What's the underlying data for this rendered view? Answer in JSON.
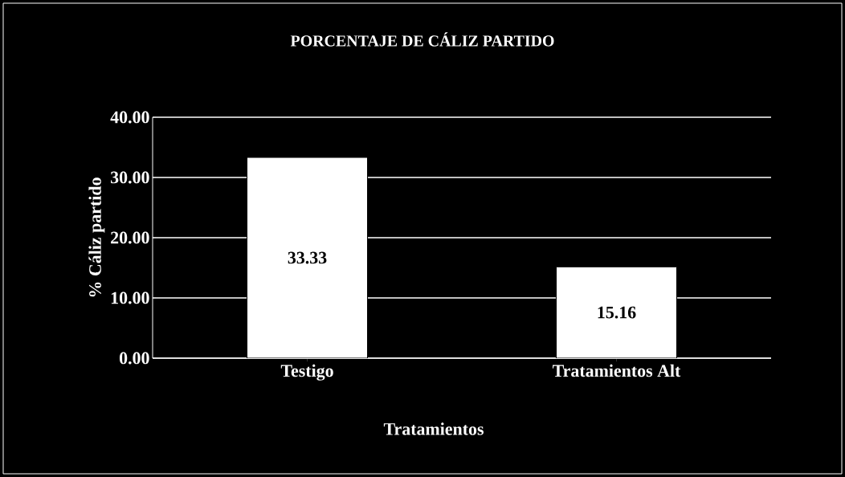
{
  "chart_data": {
    "type": "bar",
    "title": "PORCENTAJE DE CÁLIZ PARTIDO",
    "xlabel": "Tratamientos",
    "ylabel": "% Cáliz partido",
    "categories": [
      "Testigo",
      "Tratamientos Alt"
    ],
    "values": [
      33.33,
      15.16
    ],
    "color": "#ffffff",
    "ylim": [
      0,
      40
    ],
    "yticks": [
      {
        "value": 0,
        "label": "0.00"
      },
      {
        "value": 10,
        "label": "10.00"
      },
      {
        "value": 20,
        "label": "20.00"
      },
      {
        "value": 30,
        "label": "30.00"
      },
      {
        "value": 40,
        "label": "40.00"
      }
    ],
    "grid": "y",
    "data_labels": true
  }
}
